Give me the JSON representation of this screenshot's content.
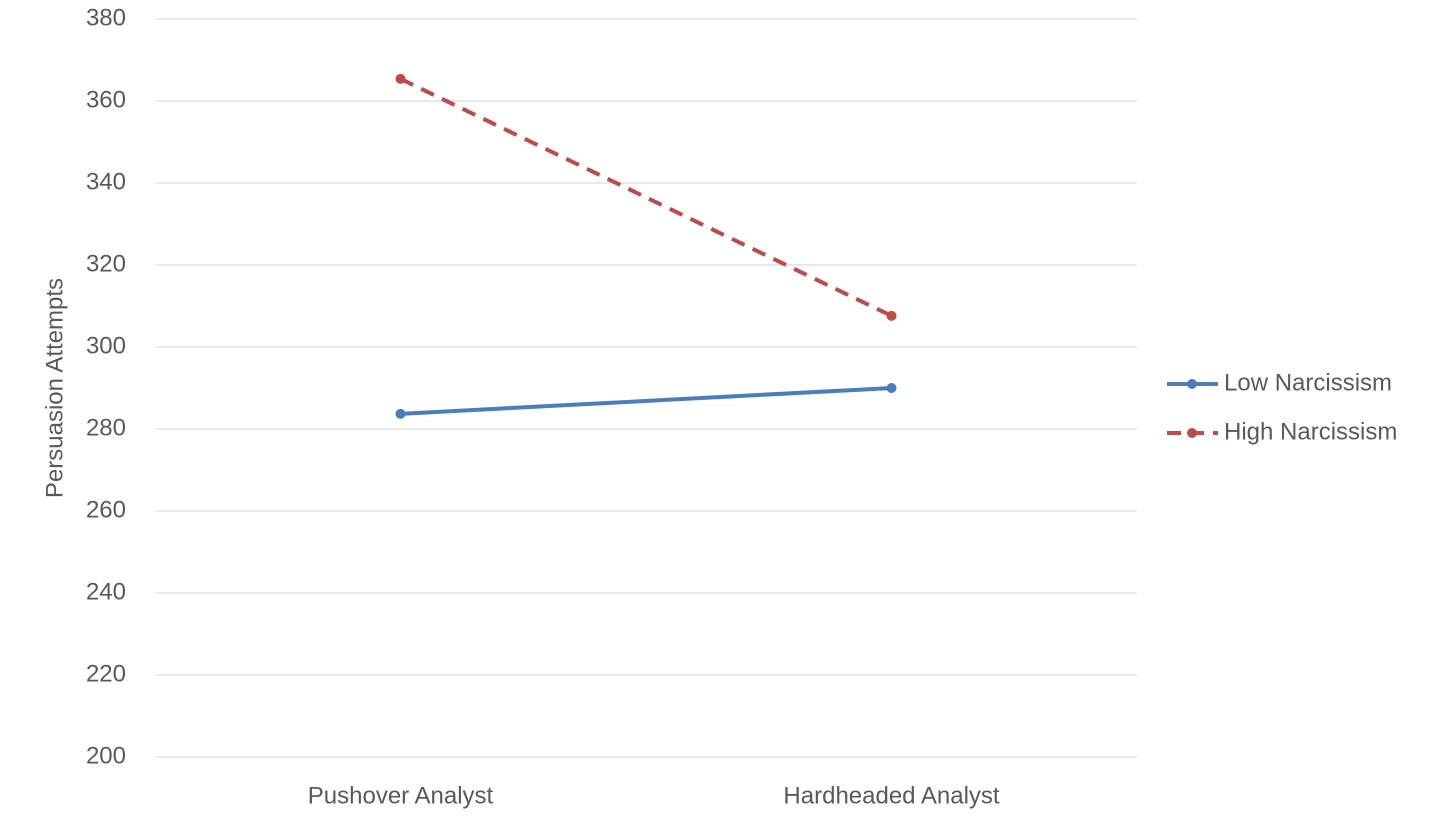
{
  "chart_data": {
    "type": "line",
    "y_label": "Persuasion Attempts",
    "categories": [
      "Pushover Analyst",
      "Hardheaded Analyst"
    ],
    "series": [
      {
        "name": "Low Narcissism",
        "color": "#4a7ebb",
        "dashed": false,
        "values": [
          283.7,
          290
        ]
      },
      {
        "name": "High Narcissism",
        "color": "#be4b48",
        "dashed": true,
        "values": [
          365.4,
          307.6
        ]
      }
    ],
    "ylim": [
      200,
      380
    ],
    "yticks": [
      200,
      220,
      240,
      260,
      280,
      300,
      320,
      340,
      360,
      380
    ],
    "grid": true,
    "legend": "right"
  }
}
